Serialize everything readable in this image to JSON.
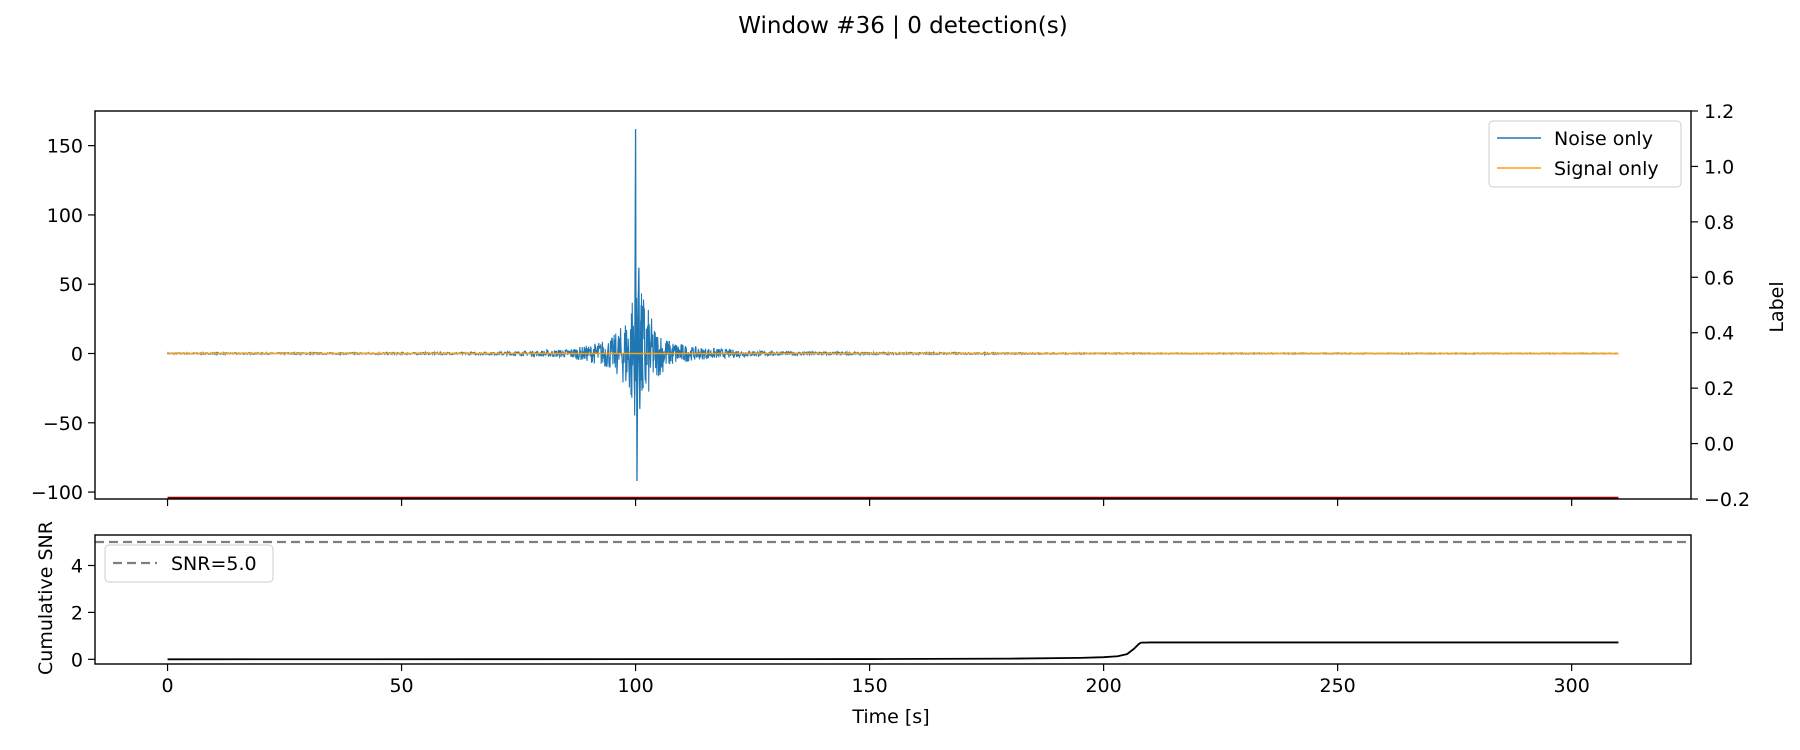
{
  "figure": {
    "title": "Window #36 | 0 detection(s)"
  },
  "chart_data": [
    {
      "type": "line",
      "panel": "waveform",
      "xlim": [
        -15.5,
        325.5
      ],
      "ylim": [
        -105,
        175
      ],
      "y2lim": [
        -0.2,
        1.2
      ],
      "y2label": "Label",
      "xticks": [
        0,
        50,
        100,
        150,
        200,
        250,
        300
      ],
      "yticks": [
        150,
        100,
        50,
        0,
        -50,
        -100
      ],
      "y2ticks": [
        1.2,
        1.0,
        0.8,
        0.6,
        0.4,
        0.2,
        0.0,
        -0.2
      ],
      "ytick_labels": [
        "150",
        "100",
        "50",
        "0",
        "−50",
        "−100"
      ],
      "y2tick_labels": [
        "1.2",
        "1.0",
        "0.8",
        "0.6",
        "0.4",
        "0.2",
        "0.0",
        "−0.2"
      ],
      "legend_position": "top-right",
      "series": [
        {
          "name": "Noise only",
          "color": "#1f77b4",
          "description_points": {
            "envelope": [
              [
                0,
                0.5
              ],
              [
                65,
                0.8
              ],
              [
                75,
                1.5
              ],
              [
                85,
                3
              ],
              [
                90,
                6
              ],
              [
                95,
                12
              ],
              [
                97,
                20
              ],
              [
                99,
                35
              ],
              [
                100,
                162
              ],
              [
                100.3,
                -92
              ],
              [
                101,
                60
              ],
              [
                102,
                40
              ],
              [
                104,
                20
              ],
              [
                107,
                10
              ],
              [
                112,
                5
              ],
              [
                120,
                3
              ],
              [
                130,
                1.5
              ],
              [
                150,
                0.8
              ],
              [
                200,
                0.4
              ],
              [
                310,
                0.3
              ]
            ]
          }
        },
        {
          "name": "Signal only",
          "color": "#ff9f0e",
          "constant_y": 0
        },
        {
          "name": "",
          "color": "#8b0000",
          "axis": "y2",
          "constant_y": -0.2
        }
      ]
    },
    {
      "type": "line",
      "panel": "snr",
      "ylabel": "Cumulative SNR",
      "xlabel": "Time [s]",
      "xlim": [
        -15.5,
        325.5
      ],
      "ylim": [
        -0.2,
        5.3
      ],
      "xticks": [
        0,
        50,
        100,
        150,
        200,
        250,
        300
      ],
      "yticks": [
        0,
        2,
        4
      ],
      "legend_position": "top-left",
      "threshold": {
        "name": "SNR=5.0",
        "value": 5.0,
        "color": "#7f7f7f"
      },
      "series": [
        {
          "name": "",
          "color": "#000000",
          "x": [
            0,
            150,
            180,
            195,
            200,
            203,
            205,
            206.5,
            207.5,
            208,
            210,
            250,
            310
          ],
          "y": [
            0,
            0.01,
            0.03,
            0.06,
            0.09,
            0.13,
            0.22,
            0.45,
            0.65,
            0.71,
            0.72,
            0.72,
            0.72
          ]
        }
      ]
    }
  ]
}
